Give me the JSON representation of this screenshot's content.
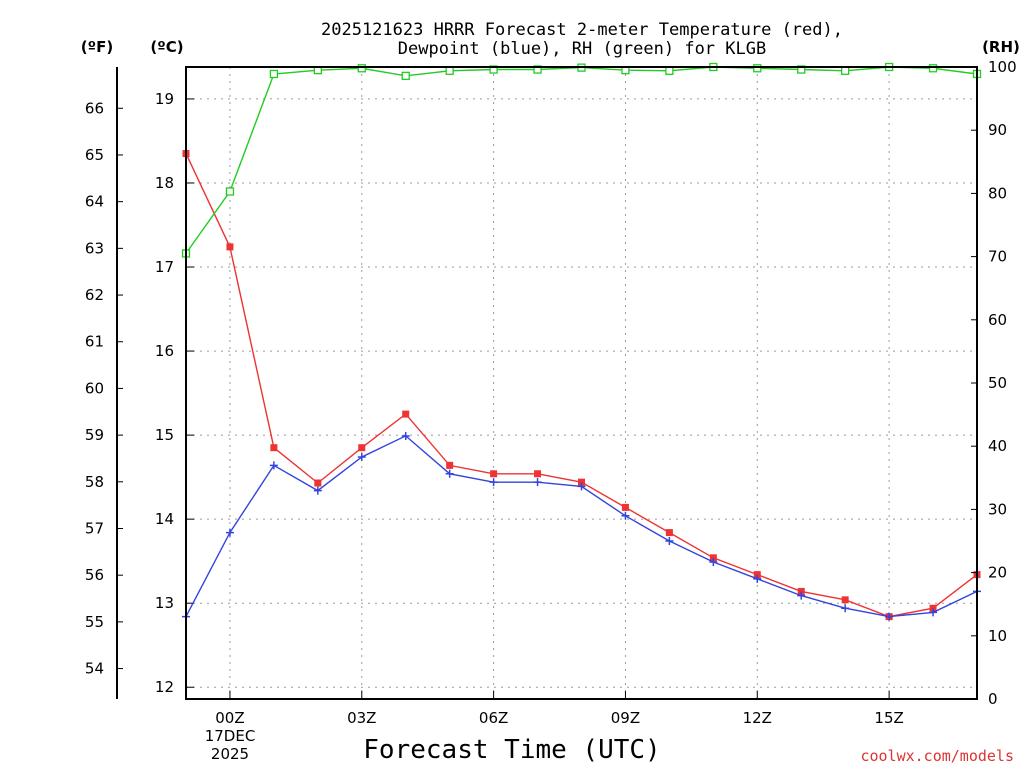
{
  "chart_data": {
    "type": "line",
    "title_line1": "2025121623 HRRR Forecast 2-meter Temperature (red),",
    "title_line2": "Dewpoint (blue), RH (green) for KLGB",
    "xlabel": "Forecast Time (UTC)",
    "credit": "coolwx.com/models",
    "units": {
      "fahrenheit": "(ºF)",
      "celsius": "(ºC)",
      "rh": "(RH)"
    },
    "x_hours": [
      -1,
      0,
      1,
      2,
      3,
      4,
      5,
      6,
      7,
      8,
      9,
      10,
      11,
      12,
      13,
      14,
      15,
      16,
      17
    ],
    "xlim": [
      -1,
      17
    ],
    "x_ticks": [
      {
        "hour": 0,
        "label": "00Z"
      },
      {
        "hour": 3,
        "label": "03Z"
      },
      {
        "hour": 6,
        "label": "06Z"
      },
      {
        "hour": 9,
        "label": "09Z"
      },
      {
        "hour": 12,
        "label": "12Z"
      },
      {
        "hour": 15,
        "label": "15Z"
      }
    ],
    "date_line1": "17DEC",
    "date_line2": "2025",
    "celsius_axis": {
      "ylim": [
        11.86,
        19.38
      ],
      "ticks": [
        "12",
        "13",
        "14",
        "15",
        "16",
        "17",
        "18",
        "19"
      ]
    },
    "fahrenheit_axis": {
      "ticks": [
        "54",
        "55",
        "56",
        "57",
        "58",
        "59",
        "60",
        "61",
        "62",
        "63",
        "64",
        "65",
        "66"
      ]
    },
    "rh_axis": {
      "ylim": [
        0,
        100
      ],
      "ticks": [
        "0",
        "10",
        "20",
        "30",
        "40",
        "50",
        "60",
        "70",
        "80",
        "90",
        "100"
      ]
    },
    "series": [
      {
        "name": "Temperature",
        "unit": "C",
        "color": "#ee3333",
        "marker": "filled-square",
        "values": [
          18.35,
          17.24,
          14.85,
          14.43,
          14.85,
          15.25,
          14.64,
          14.54,
          14.54,
          14.44,
          14.14,
          13.84,
          13.54,
          13.34,
          13.14,
          13.04,
          12.84,
          12.94,
          13.34
        ]
      },
      {
        "name": "Dewpoint",
        "unit": "C",
        "color": "#3344dd",
        "marker": "plus",
        "values": [
          12.84,
          13.84,
          14.64,
          14.34,
          14.74,
          14.99,
          14.54,
          14.44,
          14.44,
          14.39,
          14.04,
          13.74,
          13.49,
          13.29,
          13.09,
          12.94,
          12.84,
          12.89,
          13.14
        ]
      },
      {
        "name": "RH",
        "unit": "%",
        "color": "#22cc22",
        "marker": "open-square",
        "values": [
          70.5,
          80.3,
          98.9,
          99.5,
          99.8,
          98.6,
          99.4,
          99.6,
          99.6,
          99.9,
          99.5,
          99.4,
          100,
          99.8,
          99.6,
          99.4,
          100,
          99.8,
          98.9
        ]
      }
    ]
  }
}
